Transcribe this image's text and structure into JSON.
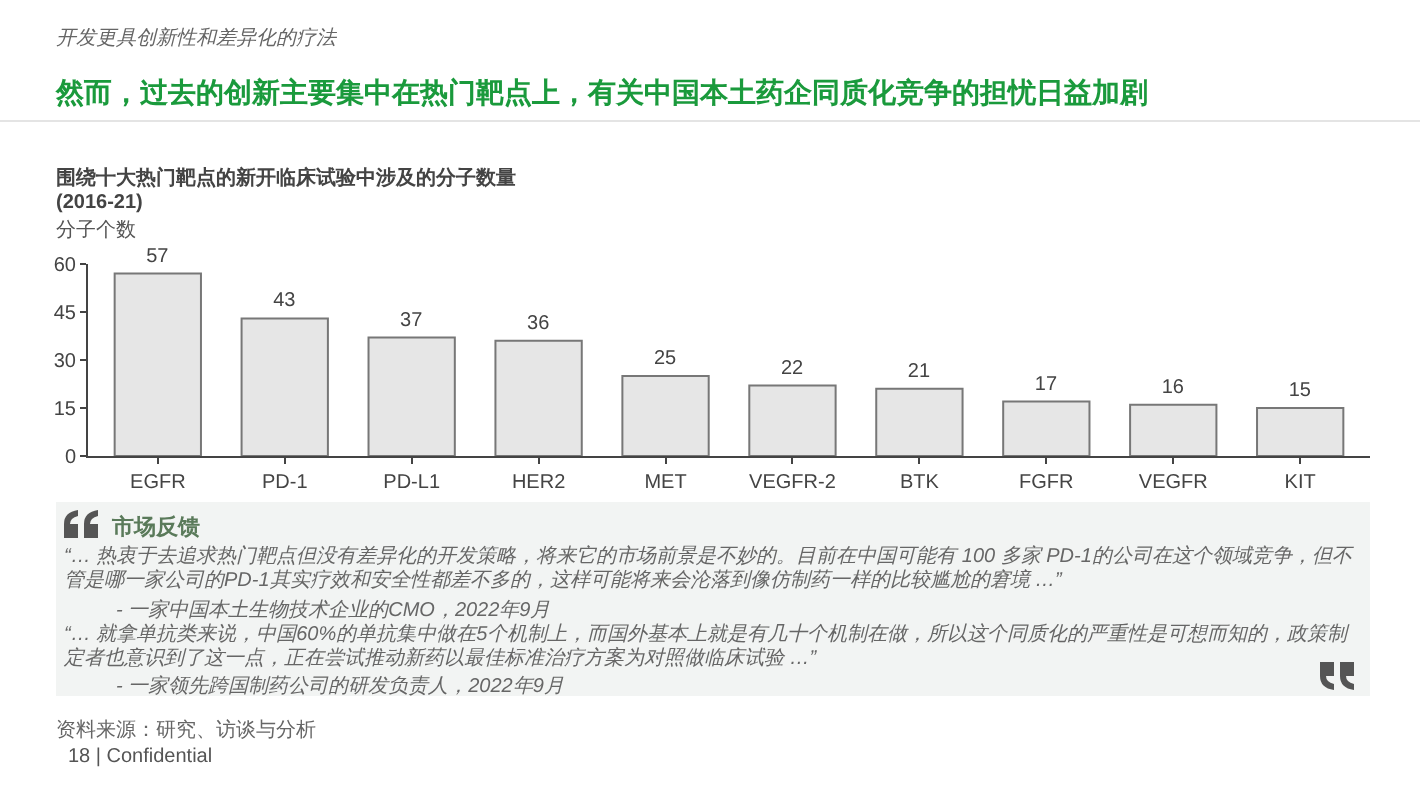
{
  "chart_data": {
    "type": "bar",
    "title": "然而，过去的创新主要集中在热门靶点上，有关中国本土药企同质化竞争的担忧日益加剧",
    "subtitle": "围绕十大热门靶点的新开临床试验中涉及的分子数量\n(2016-21)",
    "ylabel": "分子个数",
    "categories": [
      "EGFR",
      "PD-1",
      "PD-L1",
      "HER2",
      "MET",
      "VEGFR-2",
      "BTK",
      "FGFR",
      "VEGFR",
      "KIT"
    ],
    "values": [
      57,
      43,
      37,
      36,
      25,
      22,
      21,
      17,
      16,
      15
    ],
    "color": "#e6e6e6",
    "ylim": [
      0,
      60
    ],
    "yticks": [
      0,
      15,
      30,
      45,
      60
    ],
    "grid": false,
    "data_labels": true,
    "annotations": [
      "开发更具创新性和差异化的疗法",
      "市场反馈",
      "“… 热衷于去追求热门靶点但没有差异化的开发策略，将来它的市场前景是不妙的。目前在中国可能有 100 多家 PD-1的公司在这个领域竞争，但不管是哪一家公司的PD-1其实疗效和安全性都差不多的，这样可能将来会沦落到像仿制药一样的比较尴尬的窘境 …”",
      "- 一家中国本土生物技术企业的CMO，2022年9月",
      "“… 就拿单抗类来说，中国60%的单抗集中做在5个机制上，而国外基本上就是有几十个机制在做，所以这个同质化的严重性是可想而知的，政策制定者也意识到了这一点，正在尝试推动新药以最佳标准治疗方案为对照做临床试验 …”",
      "- 一家领先跨国制药公司的研发负责人，2022年9月",
      "资料来源：研究、访谈与分析",
      "18 | Confidential"
    ]
  }
}
